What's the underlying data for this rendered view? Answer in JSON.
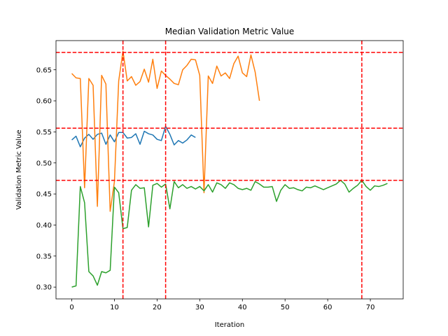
{
  "chart_data": {
    "type": "line",
    "title": "Median Validation Metric Value",
    "xlabel": "Iteration",
    "ylabel": "Validation Metric Value",
    "xlim": [
      -3.7,
      77.7
    ],
    "ylim": [
      0.281,
      0.697
    ],
    "xticks": [
      0,
      10,
      20,
      30,
      40,
      50,
      60,
      70
    ],
    "yticks": [
      0.3,
      0.35,
      0.4,
      0.45,
      0.5,
      0.55,
      0.6,
      0.65
    ],
    "ytick_labels": [
      "0.30",
      "0.35",
      "0.40",
      "0.45",
      "0.50",
      "0.55",
      "0.60",
      "0.65"
    ],
    "grid": false,
    "legend": "none",
    "series": [
      {
        "color": "#1f77b4",
        "x": [
          0,
          1,
          2,
          3,
          4,
          5,
          6,
          7,
          8,
          9,
          10,
          11,
          12,
          13,
          14,
          15,
          16,
          17,
          18,
          19,
          20,
          21,
          22,
          23,
          24,
          25,
          26,
          27,
          28,
          29
        ],
        "y": [
          0.537,
          0.543,
          0.526,
          0.54,
          0.546,
          0.538,
          0.546,
          0.548,
          0.53,
          0.545,
          0.534,
          0.549,
          0.549,
          0.54,
          0.541,
          0.547,
          0.53,
          0.551,
          0.547,
          0.545,
          0.538,
          0.536,
          0.559,
          0.546,
          0.529,
          0.536,
          0.532,
          0.537,
          0.545,
          0.541
        ]
      },
      {
        "color": "#ff7f0e",
        "x": [
          0,
          1,
          2,
          3,
          4,
          5,
          6,
          7,
          8,
          9,
          10,
          11,
          12,
          13,
          14,
          15,
          16,
          17,
          18,
          19,
          20,
          21,
          22,
          23,
          24,
          25,
          26,
          27,
          28,
          29,
          30,
          31,
          32,
          33,
          34,
          35,
          36,
          37,
          38,
          39,
          40,
          41,
          42,
          43,
          44
        ],
        "y": [
          0.644,
          0.637,
          0.636,
          0.46,
          0.636,
          0.625,
          0.43,
          0.641,
          0.627,
          0.422,
          0.47,
          0.632,
          0.68,
          0.632,
          0.639,
          0.625,
          0.631,
          0.651,
          0.63,
          0.667,
          0.62,
          0.648,
          0.641,
          0.635,
          0.628,
          0.626,
          0.65,
          0.657,
          0.667,
          0.666,
          0.641,
          0.452,
          0.64,
          0.628,
          0.656,
          0.64,
          0.645,
          0.636,
          0.66,
          0.672,
          0.645,
          0.639,
          0.674,
          0.646,
          0.6
        ]
      },
      {
        "color": "#2ca02c",
        "x": [
          0,
          1,
          2,
          3,
          4,
          5,
          6,
          7,
          8,
          9,
          10,
          11,
          12,
          13,
          14,
          15,
          16,
          17,
          18,
          19,
          20,
          21,
          22,
          23,
          24,
          25,
          26,
          27,
          28,
          29,
          30,
          31,
          32,
          33,
          34,
          35,
          36,
          37,
          38,
          39,
          40,
          41,
          42,
          43,
          44,
          45,
          46,
          47,
          48,
          49,
          50,
          51,
          52,
          53,
          54,
          55,
          56,
          57,
          58,
          59,
          60,
          61,
          62,
          63,
          64,
          65,
          66,
          67,
          68,
          69,
          70,
          71,
          72,
          73,
          74
        ],
        "y": [
          0.3,
          0.302,
          0.462,
          0.436,
          0.325,
          0.318,
          0.303,
          0.325,
          0.323,
          0.327,
          0.461,
          0.452,
          0.394,
          0.396,
          0.456,
          0.465,
          0.459,
          0.46,
          0.397,
          0.464,
          0.467,
          0.461,
          0.466,
          0.426,
          0.47,
          0.46,
          0.465,
          0.459,
          0.462,
          0.458,
          0.462,
          0.455,
          0.465,
          0.453,
          0.468,
          0.465,
          0.459,
          0.468,
          0.465,
          0.459,
          0.457,
          0.459,
          0.456,
          0.47,
          0.466,
          0.461,
          0.461,
          0.462,
          0.438,
          0.456,
          0.465,
          0.459,
          0.46,
          0.457,
          0.455,
          0.461,
          0.46,
          0.463,
          0.46,
          0.457,
          0.46,
          0.463,
          0.466,
          0.472,
          0.466,
          0.453,
          0.459,
          0.464,
          0.472,
          0.462,
          0.456,
          0.463,
          0.462,
          0.464,
          0.467
        ]
      }
    ],
    "reference_lines": {
      "color": "#ff0000",
      "style": "dashed",
      "vertical_x": [
        12,
        22,
        68
      ],
      "horizontal_y": [
        0.678,
        0.556,
        0.472
      ]
    }
  }
}
